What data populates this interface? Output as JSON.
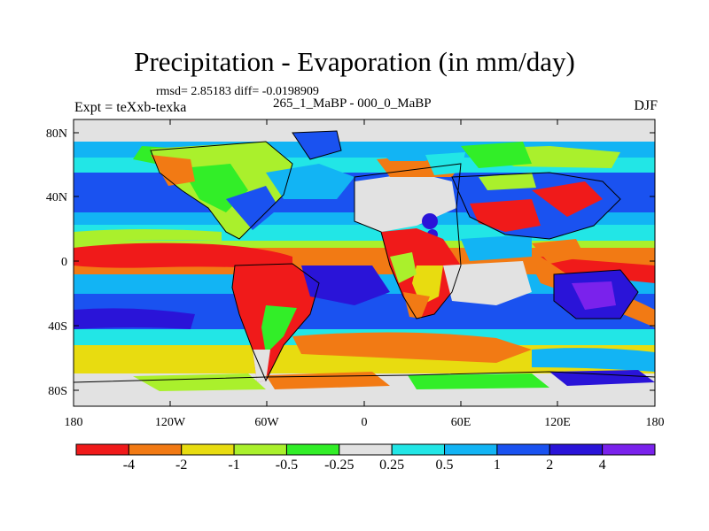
{
  "title": "Precipitation - Evaporation (in mm/day)",
  "stats": "rmsd= 2.85183 diff= -0.0198909",
  "experiment": "Expt = teXxb-texka",
  "subtitle": "265_1_MaBP - 000_0_MaBP",
  "season": "DJF",
  "lat_labels": [
    "80N",
    "40N",
    "0",
    "40S",
    "80S"
  ],
  "lon_labels": [
    "180",
    "120W",
    "60W",
    "0",
    "60E",
    "120E",
    "180"
  ],
  "colorbar": {
    "colors": [
      "#f01a1a",
      "#f27a14",
      "#e8dc10",
      "#aaf02c",
      "#32ee28",
      "#e2e2e2",
      "#22e6e6",
      "#12b4f4",
      "#1a52f0",
      "#2a14d8",
      "#7a22ec"
    ],
    "labels": [
      "-4",
      "-2",
      "-1",
      "-0.5",
      "-0.25",
      "0.25",
      "0.5",
      "1",
      "2",
      "4"
    ]
  }
}
